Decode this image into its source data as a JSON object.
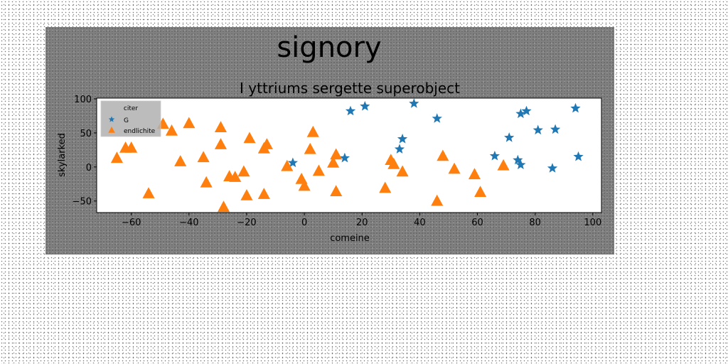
{
  "figure": {
    "suptitle": "signory"
  },
  "chart_data": {
    "type": "scatter",
    "title": "I yttriums sergette superobject",
    "xlabel": "comeine",
    "ylabel": "skylarked",
    "xlim": [
      -72,
      103
    ],
    "ylim": [
      -67,
      101
    ],
    "xticks": [
      -60,
      -40,
      -20,
      0,
      20,
      40,
      60,
      80,
      100
    ],
    "yticks": [
      -50,
      0,
      50,
      100
    ],
    "grid": false,
    "legend": {
      "title": "citer",
      "placement": "top-left"
    },
    "colors": {
      "G": "#1f77b4",
      "endlichite": "#ff7f0e"
    },
    "series": [
      {
        "name": "G",
        "marker": "star",
        "x": [
          -4,
          14,
          16,
          21,
          33,
          34,
          38,
          46,
          66,
          71,
          74,
          75,
          75,
          77,
          81,
          86,
          87,
          94,
          95
        ],
        "y": [
          6,
          13,
          82,
          89,
          26,
          41,
          93,
          71,
          16,
          43,
          10,
          78,
          3,
          82,
          54,
          -2,
          55,
          86,
          15
        ]
      },
      {
        "name": "endlichite",
        "marker": "triangle",
        "x": [
          -65,
          -62,
          -60,
          -54,
          -49,
          -46,
          -43,
          -40,
          -35,
          -34,
          -29,
          -29,
          -28,
          -26,
          -24,
          -21,
          -20,
          -19,
          -14,
          -14,
          -13,
          -6,
          -1,
          0,
          2,
          3,
          5,
          10,
          11,
          11,
          28,
          30,
          31,
          34,
          46,
          48,
          52,
          59,
          61,
          69
        ],
        "y": [
          13,
          28,
          28,
          -39,
          63,
          53,
          8,
          64,
          14,
          -23,
          58,
          33,
          -59,
          -14,
          -15,
          -7,
          -42,
          42,
          -40,
          27,
          33,
          1,
          -18,
          -28,
          26,
          51,
          -6,
          6,
          18,
          -36,
          -31,
          10,
          4,
          -7,
          -50,
          16,
          -3,
          -11,
          -37,
          2
        ]
      }
    ]
  }
}
